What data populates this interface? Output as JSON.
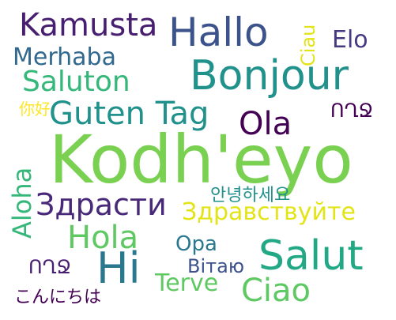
{
  "words": [
    {
      "key": "kodheyo",
      "text": "Kodh'eyo",
      "color": "#7ad151"
    },
    {
      "key": "hallo",
      "text": "Hallo",
      "color": "#3b528b"
    },
    {
      "key": "bonjour",
      "text": "Bonjour",
      "color": "#21918c"
    },
    {
      "key": "salut",
      "text": "Salut",
      "color": "#22a884"
    },
    {
      "key": "hi",
      "text": "Hi",
      "color": "#2a788e"
    },
    {
      "key": "ciao",
      "text": "Ciao",
      "color": "#5ec962"
    },
    {
      "key": "hola",
      "text": "Hola",
      "color": "#5ec962"
    },
    {
      "key": "ola",
      "text": "Ola",
      "color": "#440154"
    },
    {
      "key": "guten_tag",
      "text": "Guten Tag",
      "color": "#21918c"
    },
    {
      "key": "kamusta",
      "text": "Kamusta",
      "color": "#481f70"
    },
    {
      "key": "saluton",
      "text": "Saluton",
      "color": "#35b779"
    },
    {
      "key": "merhaba",
      "text": "Merhaba",
      "color": "#31688e"
    },
    {
      "key": "elo",
      "text": "Elo",
      "color": "#443983"
    },
    {
      "key": "zdrasti",
      "text": "Здрасти",
      "color": "#482878"
    },
    {
      "key": "zdravstvuyte",
      "text": "Здравствуйте",
      "color": "#e3e418"
    },
    {
      "key": "aloha",
      "text": "Aloha",
      "color": "#35b779"
    },
    {
      "key": "ciau",
      "text": "Ciau",
      "color": "#e3e418"
    },
    {
      "key": "opa",
      "text": "Opa",
      "color": "#2a788e"
    },
    {
      "key": "vitayu",
      "text": "Вітаю",
      "color": "#3b528b"
    },
    {
      "key": "terve",
      "text": "Terve",
      "color": "#5ec962"
    },
    {
      "key": "kr_hello",
      "text": "안녕하세요",
      "color": "#21918c"
    },
    {
      "key": "jp_hello",
      "text": "こんにちは",
      "color": "#440154"
    },
    {
      "key": "cn_hello",
      "text": "你好",
      "color": "#fde725"
    },
    {
      "key": "glyph_a",
      "text": "ՈՂՋ",
      "color": "#440154"
    },
    {
      "key": "glyph_b",
      "text": "ՈՂՋ",
      "color": "#481f70"
    }
  ]
}
